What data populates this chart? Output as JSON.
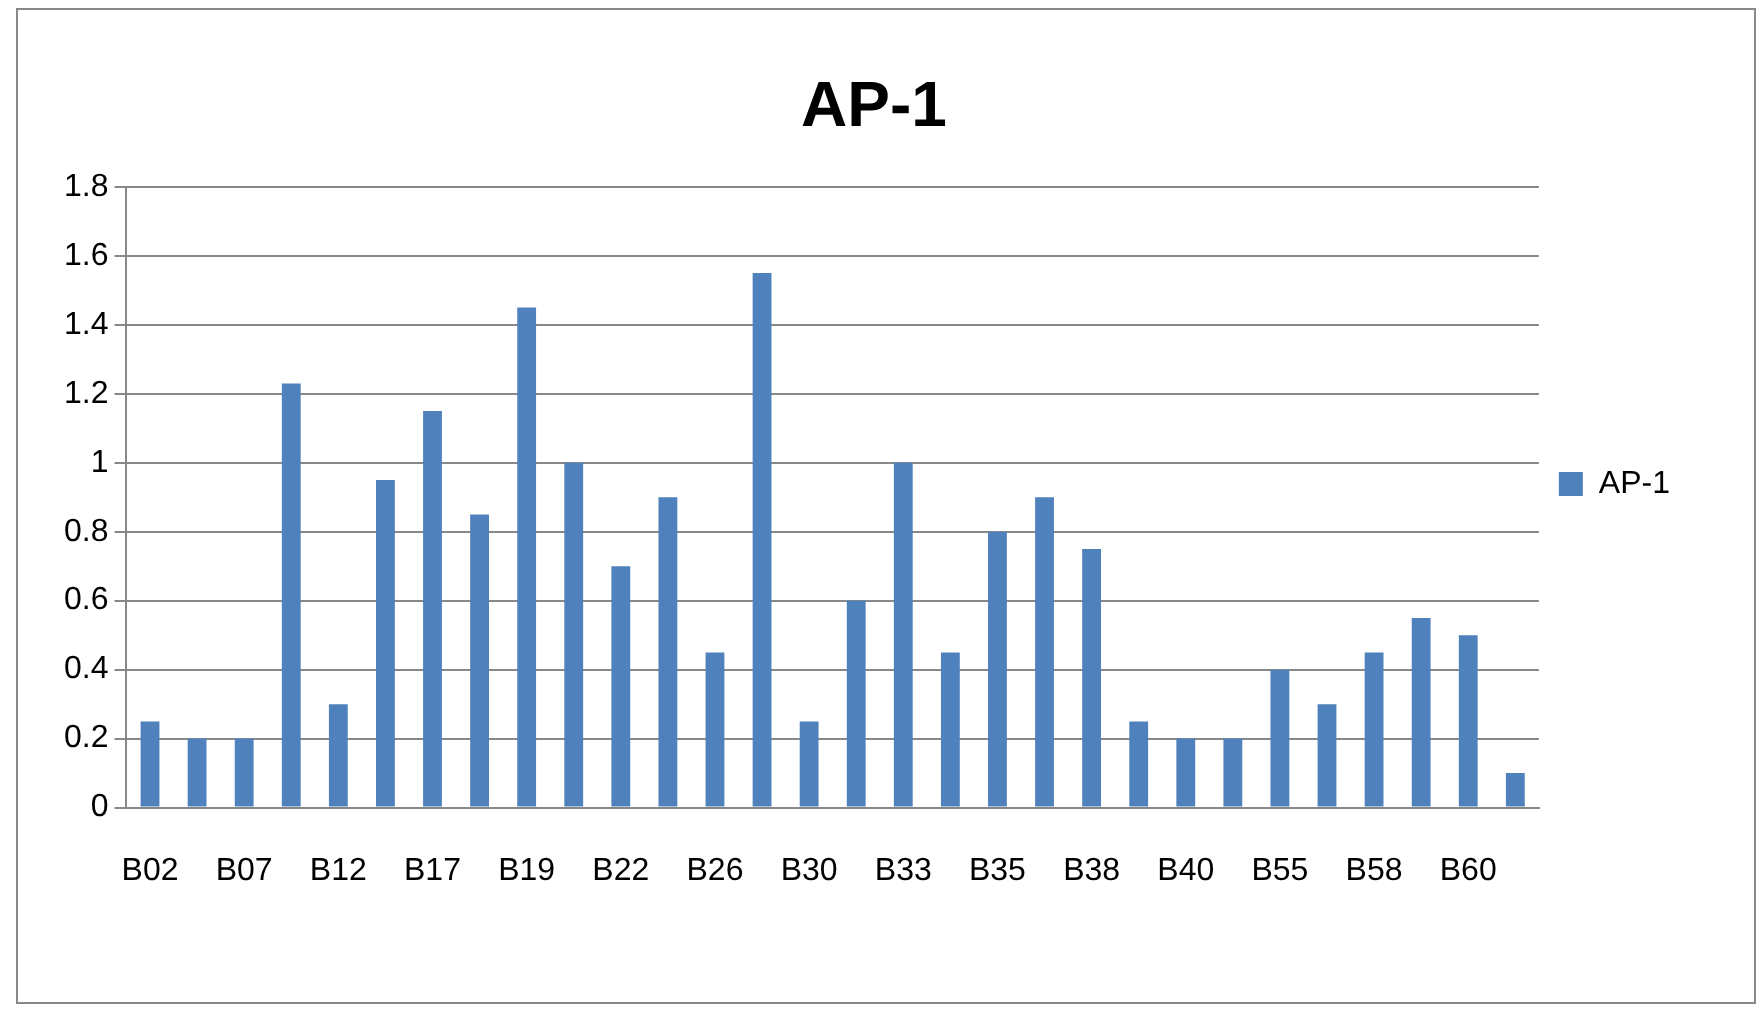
{
  "chart_data": {
    "type": "bar",
    "title": "AP-1",
    "categories": [
      "B02",
      null,
      "B07",
      null,
      "B12",
      null,
      "B17",
      null,
      "B19",
      null,
      "B22",
      null,
      "B26",
      null,
      "B30",
      null,
      "B33",
      null,
      "B35",
      null,
      "B38",
      null,
      "B40",
      null,
      "B55",
      null,
      "B58",
      null,
      "B60",
      null
    ],
    "series": [
      {
        "name": "AP-1",
        "color": "#4f81bd",
        "values": [
          0.25,
          0.2,
          0.2,
          1.23,
          0.3,
          0.95,
          1.15,
          0.85,
          1.45,
          1.0,
          0.7,
          0.9,
          0.45,
          1.55,
          0.25,
          0.6,
          1.0,
          0.45,
          0.8,
          0.9,
          0.75,
          0.25,
          0.2,
          0.2,
          0.4,
          0.3,
          0.45,
          0.55,
          0.5,
          0.1
        ]
      }
    ],
    "ylim": [
      0,
      1.8
    ],
    "yticks": [
      0,
      0.2,
      0.4,
      0.6,
      0.8,
      1,
      1.2,
      1.4,
      1.6,
      1.8
    ],
    "grid": "y",
    "legend": "right"
  }
}
